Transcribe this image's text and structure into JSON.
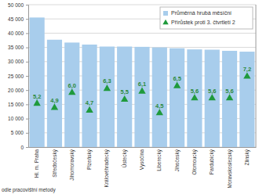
{
  "chart_data": {
    "type": "bar",
    "categories": [
      "Hl. m. Praha",
      "Středočeský",
      "Jihomoravský",
      "Plzeňský",
      "Královéhradecký",
      "Ústecký",
      "Vysočina",
      "Liberecký",
      "Jihočeský",
      "Olomoucký",
      "Pardubický",
      "Moravskoslezský",
      "Zlínský"
    ],
    "series": [
      {
        "name": "Průměrná hrubá měsíční",
        "color": "#a8cdec",
        "type": "bar",
        "values": [
          45500,
          37700,
          36700,
          36000,
          35300,
          35300,
          35200,
          35000,
          34700,
          34300,
          34200,
          33800,
          33500
        ]
      },
      {
        "name": "Přírůstek proti 3. čtvrtletí 2",
        "color": "#1f9a3c",
        "type": "scatter",
        "marker": "triangle",
        "axis": "y2",
        "data_labels": true,
        "values": [
          5.2,
          4.9,
          6.0,
          4.7,
          6.3,
          5.5,
          6.1,
          4.5,
          6.5,
          5.6,
          5.6,
          5.6,
          7.2
        ],
        "value_labels": [
          "5,2",
          "4,9",
          "6,0",
          "4,7",
          "6,3",
          "5,5",
          "6,1",
          "4,5",
          "6,5",
          "5,6",
          "5,6",
          "5,6",
          "7,2"
        ]
      }
    ],
    "ylim": [
      0,
      50000
    ],
    "yticks": [
      0,
      {
        "value": 5000,
        "label": "5 000"
      },
      {
        "value": 10000,
        "label": "10 000"
      },
      {
        "value": 15000,
        "label": "15 000"
      },
      {
        "value": 20000,
        "label": "20 000"
      },
      {
        "value": 25000,
        "label": "25 000"
      },
      {
        "value": 30000,
        "label": "30 000"
      },
      {
        "value": 35000,
        "label": "35 000"
      },
      {
        "value": 40000,
        "label": "40 000"
      },
      {
        "value": 45000,
        "label": "45 000"
      },
      {
        "value": 50000,
        "label": "50 000"
      }
    ],
    "y2lim": [
      2,
      12.5
    ],
    "grid": true,
    "legend": "top-right",
    "note": "odle pracovištní metody"
  }
}
